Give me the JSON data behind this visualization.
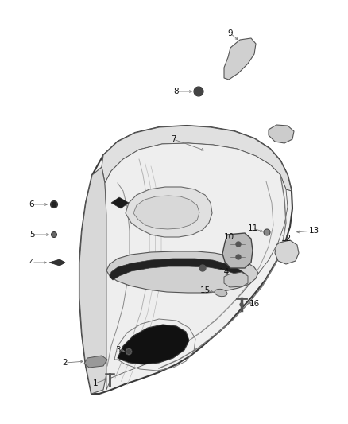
{
  "background_color": "#ffffff",
  "fig_width": 4.38,
  "fig_height": 5.33,
  "dpi": 100,
  "panel_fill": "#f2f2f2",
  "panel_edge": "#444444",
  "inner_fill": "#e8e8e8",
  "dark_fill": "#1a1a1a",
  "gray_fill": "#cccccc",
  "mid_gray": "#aaaaaa",
  "label_color": "#222222",
  "line_color": "#555555"
}
